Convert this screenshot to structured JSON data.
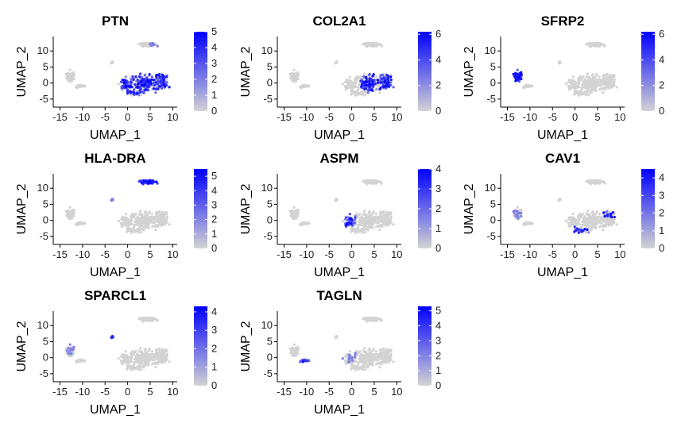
{
  "chart_data": {
    "type": "scatter",
    "layout": "feature-plot grid",
    "xlabel": "UMAP_1",
    "ylabel": "UMAP_2",
    "xticks": [
      -15,
      -10,
      -5,
      0,
      5,
      10
    ],
    "yticks": [
      -5,
      0,
      5,
      10
    ],
    "xlim": [
      -16.5,
      11
    ],
    "ylim": [
      -7.5,
      14.5
    ],
    "background_color": "#D3D3D3",
    "high_color": "#0000FF",
    "panels": [
      {
        "gene": "PTN",
        "max": 5,
        "cbticks": [
          0,
          1,
          2,
          3,
          4,
          5
        ],
        "region": "hub",
        "extra": [
          "top-cluster-edge"
        ]
      },
      {
        "gene": "COL2A1",
        "max": 6.2,
        "cbticks": [
          0,
          2,
          4,
          6
        ],
        "region": "hub-right",
        "extra": []
      },
      {
        "gene": "SFRP2",
        "max": 6.2,
        "cbticks": [
          0,
          2,
          4,
          6
        ],
        "region": "left",
        "extra": []
      },
      {
        "gene": "HLA-DRA",
        "max": 5.5,
        "cbticks": [
          0,
          1,
          2,
          3,
          4,
          5
        ],
        "region": "top",
        "extra": [
          "small"
        ]
      },
      {
        "gene": "ASPM",
        "max": 4,
        "cbticks": [
          0,
          1,
          2,
          3,
          4
        ],
        "region": "hub-neck",
        "extra": []
      },
      {
        "gene": "CAV1",
        "max": 4.5,
        "cbticks": [
          0,
          1,
          2,
          3,
          4
        ],
        "region": "hub-lower",
        "extra": [
          "left-sparse"
        ]
      },
      {
        "gene": "SPARCL1",
        "max": 4.3,
        "cbticks": [
          0,
          1,
          2,
          3,
          4
        ],
        "region": "small",
        "extra": [
          "left-sparse"
        ]
      },
      {
        "gene": "TAGLN",
        "max": 5.3,
        "cbticks": [
          0,
          1,
          2,
          3,
          4,
          5
        ],
        "region": "left-low",
        "extra": [
          "hub-neck-sparse"
        ]
      }
    ]
  }
}
